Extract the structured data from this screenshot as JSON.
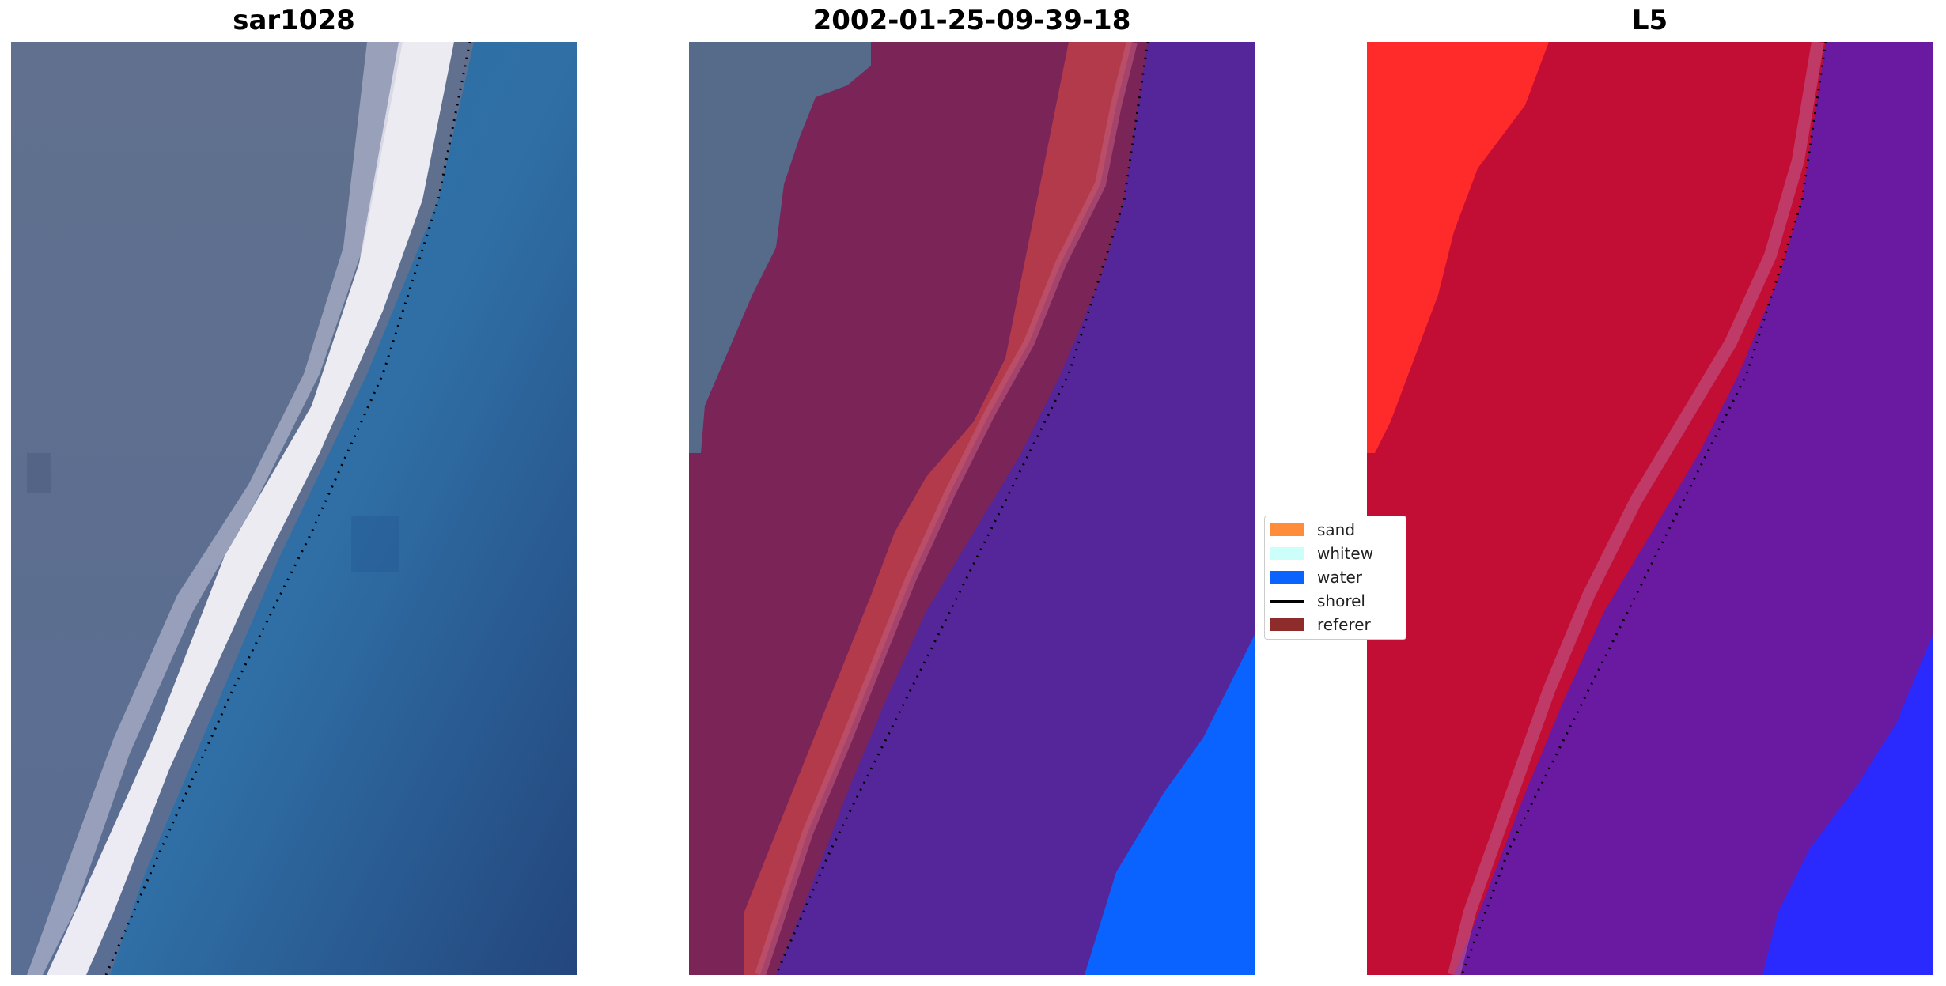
{
  "panels": [
    {
      "title": "sar1028",
      "type": "rgb-image"
    },
    {
      "title": "2002-01-25-09-39-18",
      "type": "classified-image"
    },
    {
      "title": "L5",
      "type": "probability-image"
    }
  ],
  "legend": {
    "items": [
      {
        "label": "sand",
        "color": "#ff8c3a",
        "kind": "patch"
      },
      {
        "label": "whitew",
        "color": "#ccfff9",
        "kind": "patch"
      },
      {
        "label": "water",
        "color": "#0a62ff",
        "kind": "patch"
      },
      {
        "label": "shorel",
        "color": "#000000",
        "kind": "line"
      },
      {
        "label": "referer",
        "color": "#8e2c2c",
        "kind": "patch"
      }
    ]
  },
  "colors": {
    "land_rgb": "#5b6a8a",
    "whitewater_rgb": "#f3f0f7",
    "water_rgb": "#2a6ea8",
    "deep_water_rgb": "#22477a",
    "class_reference": "#7a2457",
    "class_sand": "#b23a4b",
    "class_water": "#55269a",
    "class_water_bright": "#0a62ff",
    "prob_land": "#c20d35",
    "prob_sand": "#ff2a2a",
    "prob_water": "#6a1aa0",
    "prob_water_blue": "#2a2aff",
    "shoreline_dots": "#000000"
  }
}
